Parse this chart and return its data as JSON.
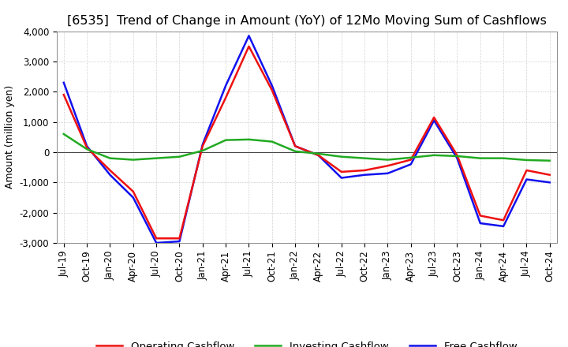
{
  "title": "[6535]  Trend of Change in Amount (YoY) of 12Mo Moving Sum of Cashflows",
  "ylabel": "Amount (million yen)",
  "x_labels": [
    "Jul-19",
    "Oct-19",
    "Jan-20",
    "Apr-20",
    "Jul-20",
    "Oct-20",
    "Jan-21",
    "Apr-21",
    "Jul-21",
    "Oct-21",
    "Jan-22",
    "Apr-22",
    "Jul-22",
    "Oct-22",
    "Jan-23",
    "Apr-23",
    "Jul-23",
    "Oct-23",
    "Jan-24",
    "Apr-24",
    "Jul-24",
    "Oct-24"
  ],
  "operating": [
    1900,
    150,
    -600,
    -1300,
    -2850,
    -2850,
    200,
    1800,
    3500,
    2050,
    200,
    -100,
    -650,
    -600,
    -450,
    -250,
    1150,
    -100,
    -2100,
    -2250,
    -600,
    -750
  ],
  "investing": [
    600,
    100,
    -200,
    -250,
    -200,
    -150,
    50,
    400,
    420,
    350,
    30,
    -50,
    -150,
    -200,
    -250,
    -180,
    -100,
    -130,
    -200,
    -200,
    -260,
    -280
  ],
  "free": [
    2300,
    200,
    -750,
    -1500,
    -3000,
    -2950,
    250,
    2200,
    3850,
    2200,
    200,
    -100,
    -850,
    -750,
    -700,
    -400,
    1050,
    -200,
    -2350,
    -2450,
    -900,
    -1000
  ],
  "ylim": [
    -3000,
    4000
  ],
  "yticks": [
    -3000,
    -2000,
    -1000,
    0,
    1000,
    2000,
    3000,
    4000
  ],
  "operating_color": "#ee1111",
  "investing_color": "#22aa22",
  "free_color": "#1111ee",
  "bg_color": "#ffffff",
  "grid_color": "#bbbbbb",
  "title_fontsize": 11.5,
  "label_fontsize": 9,
  "tick_fontsize": 8.5,
  "legend_fontsize": 9.5,
  "linewidth": 1.8
}
